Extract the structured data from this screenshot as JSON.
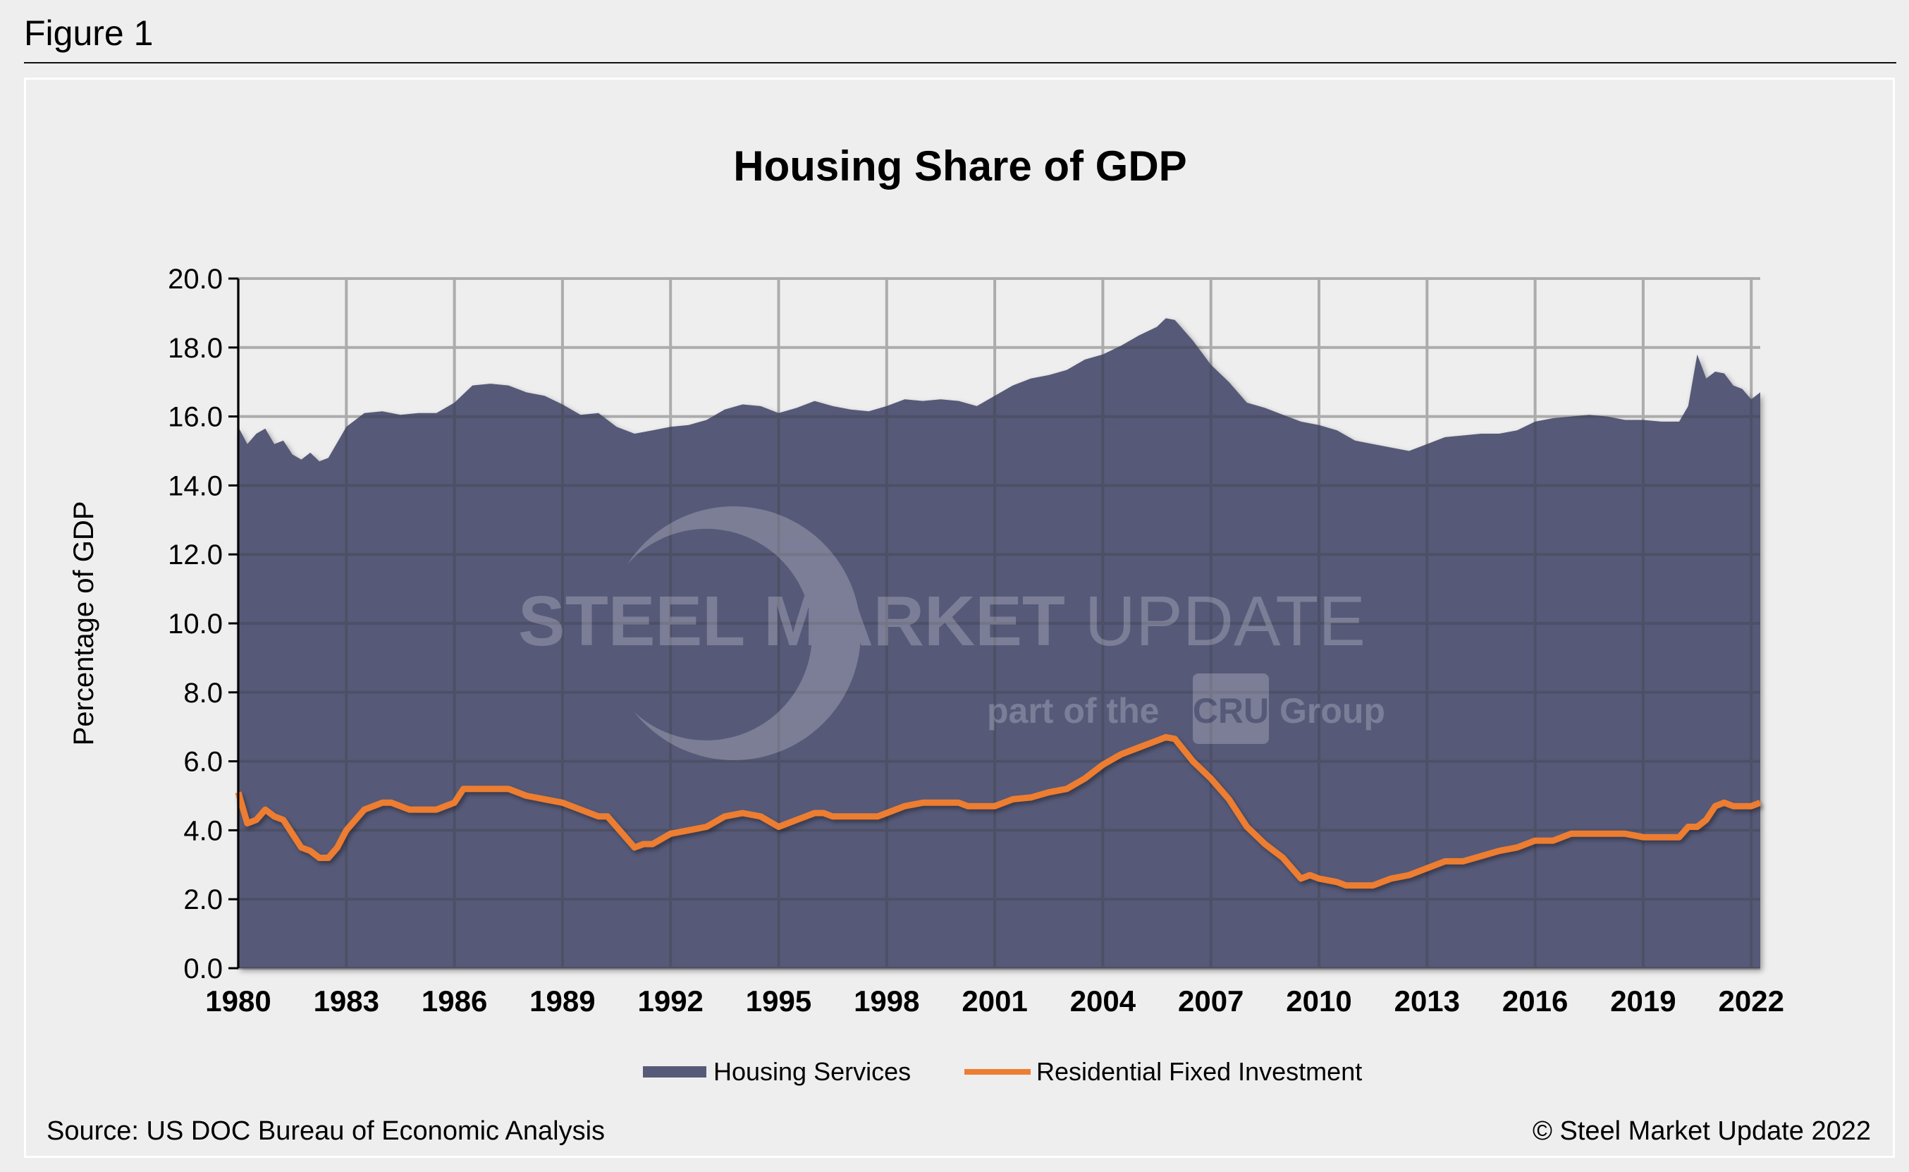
{
  "figure_label": "Figure 1",
  "source": "Source: US DOC Bureau of Economic Analysis",
  "copyright": "© Steel Market Update 2022",
  "watermark": {
    "line1_bold": "STEEL MARKET",
    "line1_light": "UPDATE",
    "line2_a": "part of the",
    "line2_logo": "CRU",
    "line2_b": "Group"
  },
  "chart_data": {
    "type": "area+line",
    "title": "Housing Share of GDP",
    "xlabel": "",
    "ylabel": "Percentage of GDP",
    "xlim": [
      1980,
      2022.25
    ],
    "ylim": [
      0,
      20
    ],
    "yticks": [
      "0.0",
      "2.0",
      "4.0",
      "6.0",
      "8.0",
      "10.0",
      "12.0",
      "14.0",
      "16.0",
      "18.0",
      "20.0"
    ],
    "xticks": [
      "1980",
      "1983",
      "1986",
      "1989",
      "1992",
      "1995",
      "1998",
      "2001",
      "2004",
      "2007",
      "2010",
      "2013",
      "2016",
      "2019",
      "2022"
    ],
    "grid": true,
    "legend": "bottom",
    "colors": {
      "housing_services": "#565a78",
      "residential_fixed_investment": "#ed7d31"
    },
    "series": [
      {
        "name": "Housing Services",
        "type": "area",
        "points": [
          [
            1980,
            15.7
          ],
          [
            1980.25,
            15.2
          ],
          [
            1980.5,
            15.5
          ],
          [
            1980.75,
            15.65
          ],
          [
            1981,
            15.2
          ],
          [
            1981.25,
            15.3
          ],
          [
            1981.5,
            14.9
          ],
          [
            1981.75,
            14.75
          ],
          [
            1982,
            14.95
          ],
          [
            1982.25,
            14.7
          ],
          [
            1982.5,
            14.8
          ],
          [
            1983,
            15.7
          ],
          [
            1983.5,
            16.1
          ],
          [
            1984,
            16.15
          ],
          [
            1984.5,
            16.05
          ],
          [
            1985,
            16.1
          ],
          [
            1985.5,
            16.1
          ],
          [
            1986,
            16.4
          ],
          [
            1986.5,
            16.9
          ],
          [
            1987,
            16.95
          ],
          [
            1987.5,
            16.9
          ],
          [
            1988,
            16.7
          ],
          [
            1988.5,
            16.6
          ],
          [
            1989,
            16.35
          ],
          [
            1989.5,
            16.05
          ],
          [
            1990,
            16.1
          ],
          [
            1990.5,
            15.7
          ],
          [
            1991,
            15.5
          ],
          [
            1991.5,
            15.6
          ],
          [
            1992,
            15.7
          ],
          [
            1992.5,
            15.75
          ],
          [
            1993,
            15.9
          ],
          [
            1993.5,
            16.2
          ],
          [
            1994,
            16.35
          ],
          [
            1994.5,
            16.3
          ],
          [
            1995,
            16.1
          ],
          [
            1995.5,
            16.25
          ],
          [
            1996,
            16.45
          ],
          [
            1996.5,
            16.3
          ],
          [
            1997,
            16.2
          ],
          [
            1997.5,
            16.15
          ],
          [
            1998,
            16.3
          ],
          [
            1998.5,
            16.5
          ],
          [
            1999,
            16.45
          ],
          [
            1999.5,
            16.5
          ],
          [
            2000,
            16.45
          ],
          [
            2000.5,
            16.3
          ],
          [
            2001,
            16.6
          ],
          [
            2001.5,
            16.9
          ],
          [
            2002,
            17.1
          ],
          [
            2002.5,
            17.2
          ],
          [
            2003,
            17.35
          ],
          [
            2003.5,
            17.65
          ],
          [
            2004,
            17.8
          ],
          [
            2004.5,
            18.05
          ],
          [
            2005,
            18.35
          ],
          [
            2005.5,
            18.6
          ],
          [
            2005.75,
            18.85
          ],
          [
            2006,
            18.8
          ],
          [
            2006.5,
            18.2
          ],
          [
            2007,
            17.5
          ],
          [
            2007.5,
            17.0
          ],
          [
            2008,
            16.4
          ],
          [
            2008.5,
            16.25
          ],
          [
            2009,
            16.05
          ],
          [
            2009.5,
            15.85
          ],
          [
            2010,
            15.75
          ],
          [
            2010.5,
            15.6
          ],
          [
            2011,
            15.3
          ],
          [
            2011.5,
            15.2
          ],
          [
            2012,
            15.1
          ],
          [
            2012.5,
            15.0
          ],
          [
            2013,
            15.2
          ],
          [
            2013.5,
            15.4
          ],
          [
            2014,
            15.45
          ],
          [
            2014.5,
            15.5
          ],
          [
            2015,
            15.5
          ],
          [
            2015.5,
            15.6
          ],
          [
            2016,
            15.85
          ],
          [
            2016.5,
            15.95
          ],
          [
            2017,
            16.0
          ],
          [
            2017.5,
            16.05
          ],
          [
            2018,
            16.0
          ],
          [
            2018.5,
            15.9
          ],
          [
            2019,
            15.9
          ],
          [
            2019.5,
            15.85
          ],
          [
            2020,
            15.85
          ],
          [
            2020.25,
            16.3
          ],
          [
            2020.5,
            17.8
          ],
          [
            2020.75,
            17.1
          ],
          [
            2021,
            17.3
          ],
          [
            2021.25,
            17.25
          ],
          [
            2021.5,
            16.9
          ],
          [
            2021.75,
            16.8
          ],
          [
            2022,
            16.5
          ],
          [
            2022.25,
            16.7
          ]
        ]
      },
      {
        "name": "Residential Fixed Investment",
        "type": "line",
        "points": [
          [
            1980,
            5.1
          ],
          [
            1980.25,
            4.2
          ],
          [
            1980.5,
            4.3
          ],
          [
            1980.75,
            4.6
          ],
          [
            1981,
            4.4
          ],
          [
            1981.25,
            4.3
          ],
          [
            1981.75,
            3.5
          ],
          [
            1982,
            3.4
          ],
          [
            1982.25,
            3.2
          ],
          [
            1982.5,
            3.2
          ],
          [
            1982.75,
            3.5
          ],
          [
            1983,
            4.0
          ],
          [
            1983.5,
            4.6
          ],
          [
            1984,
            4.8
          ],
          [
            1984.25,
            4.8
          ],
          [
            1984.75,
            4.6
          ],
          [
            1985.5,
            4.6
          ],
          [
            1986,
            4.8
          ],
          [
            1986.25,
            5.2
          ],
          [
            1987,
            5.2
          ],
          [
            1987.5,
            5.2
          ],
          [
            1988,
            5.0
          ],
          [
            1988.5,
            4.9
          ],
          [
            1989,
            4.8
          ],
          [
            1989.5,
            4.6
          ],
          [
            1990,
            4.4
          ],
          [
            1990.25,
            4.4
          ],
          [
            1990.5,
            4.1
          ],
          [
            1991,
            3.5
          ],
          [
            1991.25,
            3.6
          ],
          [
            1991.5,
            3.6
          ],
          [
            1992,
            3.9
          ],
          [
            1992.5,
            4.0
          ],
          [
            1993,
            4.1
          ],
          [
            1993.5,
            4.4
          ],
          [
            1994,
            4.5
          ],
          [
            1994.5,
            4.4
          ],
          [
            1995,
            4.1
          ],
          [
            1995.5,
            4.3
          ],
          [
            1996,
            4.5
          ],
          [
            1996.25,
            4.5
          ],
          [
            1996.5,
            4.4
          ],
          [
            1997,
            4.4
          ],
          [
            1997.75,
            4.4
          ],
          [
            1998,
            4.5
          ],
          [
            1998.5,
            4.7
          ],
          [
            1999,
            4.8
          ],
          [
            1999.5,
            4.8
          ],
          [
            2000,
            4.8
          ],
          [
            2000.25,
            4.7
          ],
          [
            2001,
            4.7
          ],
          [
            2001.5,
            4.9
          ],
          [
            2002,
            4.95
          ],
          [
            2002.5,
            5.1
          ],
          [
            2003,
            5.2
          ],
          [
            2003.5,
            5.5
          ],
          [
            2004,
            5.9
          ],
          [
            2004.5,
            6.2
          ],
          [
            2005,
            6.4
          ],
          [
            2005.5,
            6.6
          ],
          [
            2005.75,
            6.7
          ],
          [
            2006,
            6.65
          ],
          [
            2006.5,
            6.0
          ],
          [
            2007,
            5.5
          ],
          [
            2007.5,
            4.9
          ],
          [
            2008,
            4.1
          ],
          [
            2008.5,
            3.6
          ],
          [
            2009,
            3.2
          ],
          [
            2009.5,
            2.6
          ],
          [
            2009.75,
            2.7
          ],
          [
            2010,
            2.6
          ],
          [
            2010.5,
            2.5
          ],
          [
            2010.75,
            2.4
          ],
          [
            2011,
            2.4
          ],
          [
            2011.5,
            2.4
          ],
          [
            2012,
            2.6
          ],
          [
            2012.5,
            2.7
          ],
          [
            2013,
            2.9
          ],
          [
            2013.5,
            3.1
          ],
          [
            2014,
            3.1
          ],
          [
            2014.5,
            3.25
          ],
          [
            2015,
            3.4
          ],
          [
            2015.5,
            3.5
          ],
          [
            2016,
            3.7
          ],
          [
            2016.5,
            3.7
          ],
          [
            2017,
            3.9
          ],
          [
            2017.5,
            3.9
          ],
          [
            2018,
            3.9
          ],
          [
            2018.5,
            3.9
          ],
          [
            2019,
            3.8
          ],
          [
            2019.5,
            3.8
          ],
          [
            2020,
            3.8
          ],
          [
            2020.25,
            4.1
          ],
          [
            2020.5,
            4.1
          ],
          [
            2020.75,
            4.3
          ],
          [
            2021,
            4.7
          ],
          [
            2021.25,
            4.8
          ],
          [
            2021.5,
            4.7
          ],
          [
            2022,
            4.7
          ],
          [
            2022.25,
            4.8
          ]
        ]
      }
    ]
  }
}
